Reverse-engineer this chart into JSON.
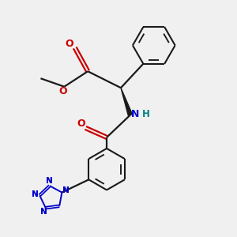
{
  "background_color": "#f0f0f0",
  "bond_color": "#1a1a1a",
  "o_color": "#cc0000",
  "n_color": "#0000cc",
  "h_color": "#008080",
  "figsize": [
    3.0,
    3.0
  ],
  "dpi": 100,
  "xlim": [
    0,
    10
  ],
  "ylim": [
    0,
    10
  ],
  "lw": 1.6,
  "lw_ring": 1.5,
  "lw_tet": 1.4
}
